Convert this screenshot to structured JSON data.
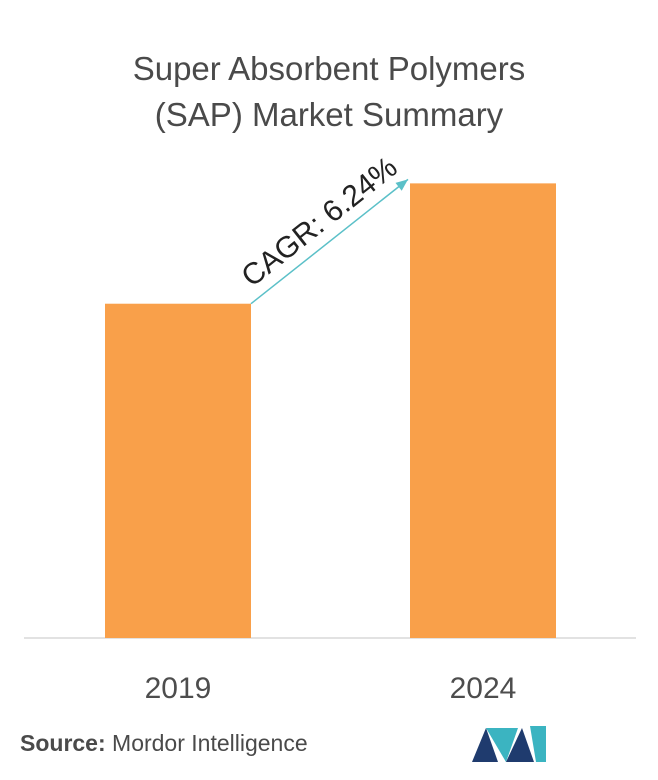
{
  "chart_data": {
    "type": "bar",
    "title": "Super Absorbent Polymers (SAP) Market Summary",
    "title_lines": [
      "Super Absorbent Polymers",
      "(SAP) Market Summary"
    ],
    "categories": [
      "2019",
      "2024"
    ],
    "values": [
      1.0,
      1.36
    ],
    "ylim": [
      0,
      1.4
    ],
    "bar_color": "#F9A04A",
    "annotation": "CAGR: 6.24%",
    "annotation_color": "#5BC0C8",
    "grid": false,
    "legend": "none"
  },
  "source": {
    "label": "Source:",
    "text": "Mordor Intelligence"
  },
  "logo": {
    "colors": [
      "#1F3B6E",
      "#3BB4C1"
    ]
  }
}
